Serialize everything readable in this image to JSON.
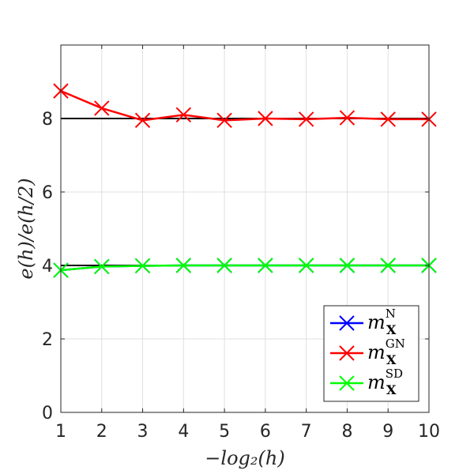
{
  "chart_data": {
    "type": "line",
    "xlabel": "−log₂(h)",
    "ylabel": "e(h)/e(h/2)",
    "xlim": [
      1,
      10
    ],
    "ylim": [
      0,
      10
    ],
    "xticks": [
      1,
      2,
      3,
      4,
      5,
      6,
      7,
      8,
      9,
      10
    ],
    "yticks": [
      0,
      2,
      4,
      6,
      8
    ],
    "grid": true,
    "legend_position": "bottom-right",
    "reference_lines": [
      {
        "y": 8,
        "color": "#000000"
      },
      {
        "y": 4,
        "color": "#000000"
      }
    ],
    "x": [
      1,
      2,
      3,
      4,
      5,
      6,
      7,
      8,
      9,
      10
    ],
    "series": [
      {
        "name": "m_X^N",
        "legend": {
          "base": "m",
          "sub": "X",
          "sup": "N"
        },
        "color": "#0000ff",
        "marker": "x",
        "values": [
          3.87,
          3.97,
          3.99,
          4.0,
          4.0,
          4.0,
          4.0,
          4.0,
          4.0,
          4.0
        ]
      },
      {
        "name": "m_X^GN",
        "legend": {
          "base": "m",
          "sub": "X",
          "sup": "GN"
        },
        "color": "#ff0000",
        "marker": "x",
        "values": [
          8.75,
          8.28,
          7.95,
          8.1,
          7.95,
          8.0,
          7.98,
          8.02,
          7.98,
          7.98
        ]
      },
      {
        "name": "m_X^SD",
        "legend": {
          "base": "m",
          "sub": "X",
          "sup": "SD"
        },
        "color": "#00ff00",
        "marker": "x",
        "values": [
          3.87,
          3.97,
          3.99,
          4.0,
          4.0,
          4.0,
          4.0,
          4.0,
          4.0,
          4.0
        ]
      }
    ]
  }
}
